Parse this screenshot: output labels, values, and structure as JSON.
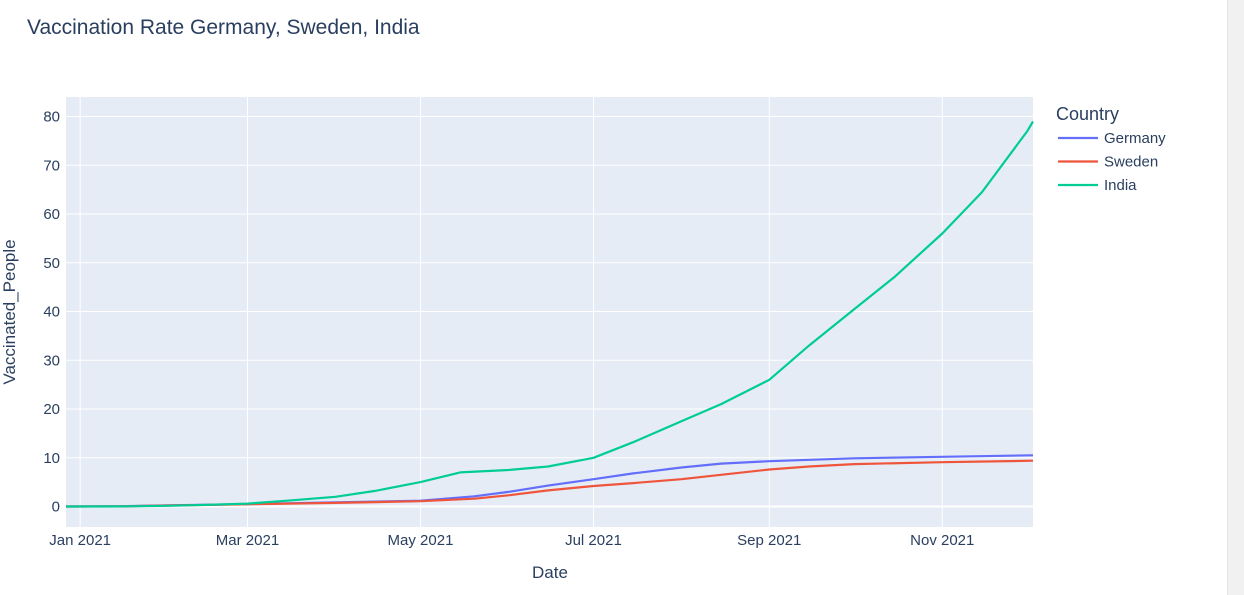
{
  "chart_data": {
    "type": "line",
    "title": "Vaccination Rate Germany, Sweden, India",
    "xlabel": "Date",
    "ylabel": "Vaccinated_People",
    "x_ticks": [
      "2021-01-01",
      "2021-03-01",
      "2021-05-01",
      "2021-07-01",
      "2021-09-01",
      "2021-11-01"
    ],
    "x_tick_labels": [
      "Jan 2021",
      "Mar 2021",
      "May 2021",
      "Jul 2021",
      "Sep 2021",
      "Nov 2021"
    ],
    "xlim": [
      "2020-12-27",
      "2021-12-03"
    ],
    "y_ticks": [
      0,
      10,
      20,
      30,
      40,
      50,
      60,
      70,
      80
    ],
    "ylim": [
      -4.2,
      84
    ],
    "grid": true,
    "legend": {
      "title": "Country",
      "placement": "right"
    },
    "series": [
      {
        "name": "Germany",
        "color": "#636efa",
        "points": [
          [
            "2020-12-27",
            0
          ],
          [
            "2021-01-15",
            0.05
          ],
          [
            "2021-02-01",
            0.25
          ],
          [
            "2021-03-01",
            0.5
          ],
          [
            "2021-04-01",
            0.85
          ],
          [
            "2021-05-01",
            1.2
          ],
          [
            "2021-05-20",
            2.1
          ],
          [
            "2021-06-01",
            3.0
          ],
          [
            "2021-06-15",
            4.3
          ],
          [
            "2021-07-01",
            5.6
          ],
          [
            "2021-07-15",
            6.8
          ],
          [
            "2021-08-01",
            8.0
          ],
          [
            "2021-08-15",
            8.8
          ],
          [
            "2021-09-01",
            9.3
          ],
          [
            "2021-10-01",
            9.9
          ],
          [
            "2021-11-01",
            10.2
          ],
          [
            "2021-12-03",
            10.5
          ]
        ]
      },
      {
        "name": "Sweden",
        "color": "#ef553b",
        "points": [
          [
            "2020-12-27",
            0
          ],
          [
            "2021-01-15",
            0.05
          ],
          [
            "2021-02-01",
            0.2
          ],
          [
            "2021-03-01",
            0.45
          ],
          [
            "2021-04-01",
            0.75
          ],
          [
            "2021-05-01",
            1.1
          ],
          [
            "2021-05-20",
            1.6
          ],
          [
            "2021-06-01",
            2.3
          ],
          [
            "2021-06-15",
            3.3
          ],
          [
            "2021-07-01",
            4.2
          ],
          [
            "2021-07-15",
            4.8
          ],
          [
            "2021-08-01",
            5.6
          ],
          [
            "2021-08-15",
            6.5
          ],
          [
            "2021-09-01",
            7.6
          ],
          [
            "2021-09-15",
            8.2
          ],
          [
            "2021-10-01",
            8.7
          ],
          [
            "2021-11-01",
            9.1
          ],
          [
            "2021-12-03",
            9.4
          ]
        ]
      },
      {
        "name": "India",
        "color": "#00cc96",
        "points": [
          [
            "2020-12-27",
            0
          ],
          [
            "2021-01-15",
            0.02
          ],
          [
            "2021-02-01",
            0.15
          ],
          [
            "2021-02-15",
            0.35
          ],
          [
            "2021-03-01",
            0.6
          ],
          [
            "2021-03-15",
            1.2
          ],
          [
            "2021-04-01",
            2.0
          ],
          [
            "2021-04-15",
            3.2
          ],
          [
            "2021-05-01",
            5.0
          ],
          [
            "2021-05-15",
            7.0
          ],
          [
            "2021-06-01",
            7.5
          ],
          [
            "2021-06-15",
            8.2
          ],
          [
            "2021-07-01",
            10.0
          ],
          [
            "2021-07-15",
            13.2
          ],
          [
            "2021-08-01",
            17.5
          ],
          [
            "2021-08-15",
            21.0
          ],
          [
            "2021-09-01",
            26.0
          ],
          [
            "2021-09-15",
            33.0
          ],
          [
            "2021-10-01",
            40.5
          ],
          [
            "2021-10-15",
            47.0
          ],
          [
            "2021-11-01",
            56.0
          ],
          [
            "2021-11-15",
            64.5
          ],
          [
            "2021-12-01",
            77.0
          ],
          [
            "2021-12-03",
            79.0
          ]
        ]
      }
    ]
  }
}
